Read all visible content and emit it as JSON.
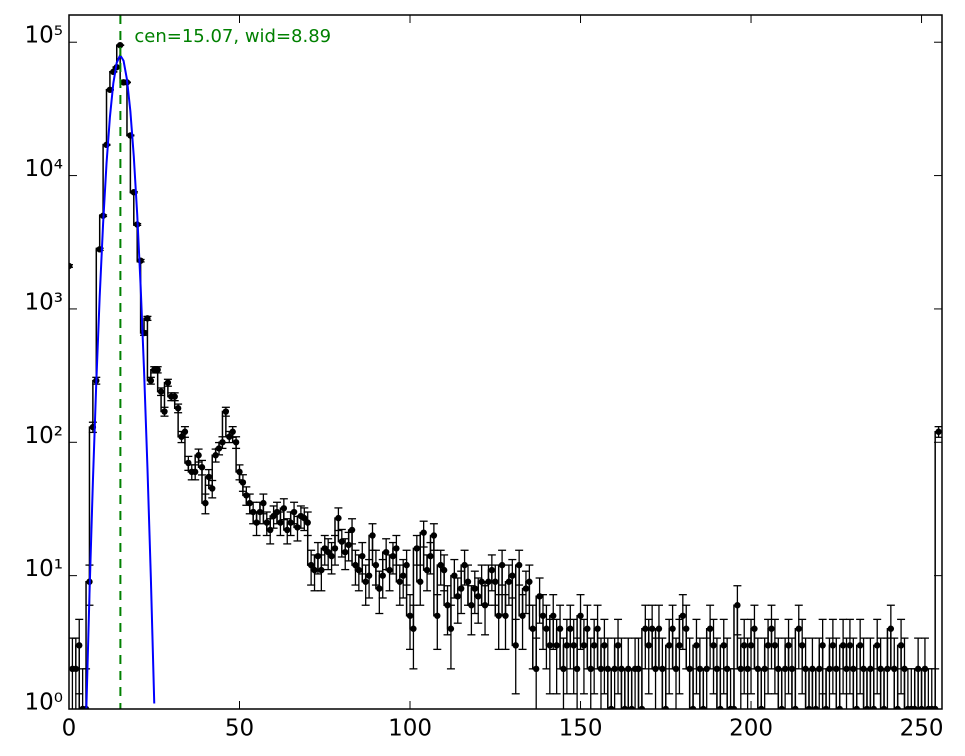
{
  "chart_data": {
    "type": "errorbar",
    "annotation": "cen=15.07, wid=8.89",
    "annotation_color": "#008000",
    "vline": 15.07,
    "log_y": true,
    "xlim": [
      0,
      256
    ],
    "ylim": [
      1,
      160000
    ],
    "xticks": [
      0,
      50,
      100,
      150,
      200,
      250
    ],
    "yticks": [
      {
        "value": 1,
        "label": "10⁰"
      },
      {
        "value": 10,
        "label": "10¹"
      },
      {
        "value": 100,
        "label": "10²"
      },
      {
        "value": 1000,
        "label": "10³"
      },
      {
        "value": 10000,
        "label": "10⁴"
      },
      {
        "value": 100000,
        "label": "10⁵"
      }
    ],
    "series": [
      {
        "color": "#000000",
        "x": [
          0,
          1,
          2,
          3,
          4,
          5,
          6,
          7,
          8,
          9,
          10,
          11,
          12,
          13,
          14,
          15,
          16,
          17,
          18,
          19,
          20,
          21,
          22,
          23,
          24,
          25,
          26,
          27,
          28,
          29,
          30,
          31,
          32,
          33,
          34,
          35,
          36,
          37,
          38,
          39,
          40,
          41,
          42,
          43,
          44,
          45,
          46,
          47,
          48,
          49,
          50,
          51,
          52,
          53,
          54,
          55,
          56,
          57,
          58,
          59,
          60,
          61,
          62,
          63,
          64,
          65,
          66,
          67,
          68,
          69,
          70,
          71,
          72,
          73,
          74,
          75,
          76,
          77,
          78,
          79,
          80,
          81,
          82,
          83,
          84,
          85,
          86,
          87,
          88,
          89,
          90,
          91,
          92,
          93,
          94,
          95,
          96,
          97,
          98,
          99,
          100,
          101,
          102,
          103,
          104,
          105,
          106,
          107,
          108,
          109,
          110,
          111,
          112,
          113,
          114,
          115,
          116,
          117,
          118,
          119,
          120,
          121,
          122,
          123,
          124,
          125,
          126,
          127,
          128,
          129,
          130,
          131,
          132,
          133,
          134,
          135,
          136,
          137,
          138,
          139,
          140,
          141,
          142,
          143,
          144,
          145,
          146,
          147,
          148,
          149,
          150,
          151,
          152,
          153,
          154,
          155,
          156,
          157,
          158,
          159,
          160,
          161,
          162,
          163,
          164,
          165,
          166,
          167,
          168,
          169,
          170,
          171,
          172,
          173,
          174,
          175,
          176,
          177,
          178,
          179,
          180,
          181,
          182,
          183,
          184,
          185,
          186,
          187,
          188,
          189,
          190,
          191,
          192,
          193,
          194,
          195,
          196,
          197,
          198,
          199,
          200,
          201,
          202,
          203,
          204,
          205,
          206,
          207,
          208,
          209,
          210,
          211,
          212,
          213,
          214,
          215,
          216,
          217,
          218,
          219,
          220,
          221,
          222,
          223,
          224,
          225,
          226,
          227,
          228,
          229,
          230,
          231,
          232,
          233,
          234,
          235,
          236,
          237,
          238,
          239,
          240,
          241,
          242,
          243,
          244,
          245,
          246,
          247,
          248,
          249,
          250,
          251,
          252,
          253,
          254,
          255
        ],
        "values": [
          2100,
          2,
          2,
          3,
          1,
          1,
          9,
          130,
          290,
          2800,
          5000,
          17000,
          44000,
          60000,
          65000,
          95000,
          50000,
          50000,
          20000,
          7500,
          4300,
          2300,
          660,
          850,
          290,
          350,
          350,
          240,
          170,
          280,
          220,
          220,
          180,
          110,
          120,
          70,
          60,
          60,
          80,
          65,
          35,
          55,
          45,
          80,
          90,
          100,
          170,
          110,
          120,
          100,
          60,
          50,
          40,
          35,
          30,
          25,
          30,
          35,
          25,
          22,
          28,
          30,
          25,
          32,
          22,
          25,
          30,
          23,
          28,
          27,
          25,
          12,
          11,
          14,
          11,
          16,
          15,
          14,
          16,
          27,
          18,
          15,
          17,
          22,
          12,
          11,
          14,
          9,
          10,
          20,
          12,
          8,
          10,
          15,
          11,
          14,
          16,
          9,
          10,
          12,
          5,
          4,
          16,
          9,
          21,
          11,
          14,
          20,
          5,
          12,
          11,
          6,
          4,
          10,
          7,
          8,
          12,
          9,
          6,
          8,
          7,
          9,
          6,
          9,
          11,
          9,
          5,
          12,
          5,
          9,
          10,
          3,
          12,
          5,
          8,
          9,
          4,
          2,
          7,
          5,
          4,
          3,
          5,
          3,
          4,
          2,
          3,
          4,
          3,
          2,
          5,
          3,
          4,
          2,
          3,
          4,
          2,
          3,
          2,
          1,
          2,
          3,
          2,
          1,
          2,
          1,
          2,
          2,
          1,
          4,
          3,
          4,
          2,
          4,
          2,
          1,
          3,
          4,
          2,
          3,
          5,
          4,
          2,
          1,
          3,
          2,
          1,
          2,
          4,
          3,
          2,
          1,
          3,
          2,
          1,
          1,
          6,
          2,
          3,
          2,
          3,
          4,
          2,
          1,
          2,
          3,
          4,
          3,
          2,
          1,
          2,
          3,
          2,
          1,
          4,
          3,
          2,
          1,
          2,
          1,
          2,
          3,
          1,
          2,
          3,
          2,
          1,
          3,
          2,
          3,
          2,
          1,
          3,
          2,
          1,
          2,
          1,
          3,
          2,
          1,
          2,
          4,
          2,
          1,
          3,
          2,
          1,
          1,
          1,
          2,
          1,
          2,
          1,
          1,
          1,
          120
        ],
        "errors": [
          45.8,
          1.4,
          1.4,
          1.7,
          1,
          1,
          3,
          11.4,
          17,
          52.9,
          70.7,
          130.4,
          209.8,
          244.9,
          255,
          308.2,
          223.6,
          223.6,
          141.4,
          86.6,
          65.6,
          48,
          25.7,
          29.2,
          17,
          18.7,
          18.7,
          15.5,
          13,
          16.7,
          14.8,
          14.8,
          13.4,
          10.5,
          11,
          8.4,
          7.7,
          7.7,
          8.9,
          8.1,
          5.9,
          7.4,
          6.7,
          8.9,
          9.5,
          10,
          13,
          10.5,
          11,
          10,
          7.7,
          7.1,
          6.3,
          5.9,
          5.5,
          5,
          5.5,
          5.9,
          5,
          4.7,
          5.3,
          5.5,
          5,
          5.7,
          4.7,
          5,
          5.5,
          4.8,
          5.3,
          5.2,
          5,
          3.5,
          3.3,
          3.7,
          3.3,
          4,
          3.9,
          3.7,
          4,
          5.2,
          4.2,
          3.9,
          4.1,
          4.7,
          3.5,
          3.3,
          3.7,
          3,
          3.2,
          4.5,
          3.5,
          2.8,
          3.2,
          3.9,
          3.3,
          3.7,
          4,
          3,
          3.2,
          3.5,
          2.2,
          2,
          4,
          3,
          4.6,
          3.3,
          3.7,
          4.5,
          2.2,
          3.5,
          3.3,
          2.4,
          2,
          3.2,
          2.6,
          2.8,
          3.5,
          3,
          2.4,
          2.8,
          2.6,
          3,
          2.4,
          3,
          3.3,
          3,
          2.2,
          3.5,
          2.2,
          3,
          3.2,
          1.7,
          3.5,
          2.2,
          2.8,
          3,
          2,
          1.4,
          2.6,
          2.2,
          2,
          1.7,
          2.2,
          1.7,
          2,
          1.4,
          1.7,
          2,
          1.7,
          1.4,
          2.2,
          1.7,
          2,
          1.4,
          1.7,
          2,
          1.4,
          1.7,
          1.4,
          1,
          1.4,
          1.7,
          1.4,
          1,
          1.4,
          1,
          1.4,
          1.4,
          1,
          2,
          1.7,
          2,
          1.4,
          2,
          1.4,
          1,
          1.7,
          2,
          1.4,
          1.7,
          2.2,
          2,
          1.4,
          1,
          1.7,
          1.4,
          1,
          1.4,
          2,
          1.7,
          1.4,
          1,
          1.7,
          1.4,
          1,
          1,
          2.4,
          1.4,
          1.7,
          1.4,
          1.7,
          2,
          1.4,
          1,
          1.4,
          1.7,
          2,
          1.7,
          1.4,
          1,
          1.4,
          1.7,
          1.4,
          1,
          2,
          1.7,
          1.4,
          1,
          1.4,
          1,
          1.4,
          1.7,
          1,
          1.4,
          1.7,
          1.4,
          1,
          1.7,
          1.4,
          1.7,
          1.4,
          1,
          1.7,
          1.4,
          1,
          1.4,
          1,
          1.7,
          1.4,
          1,
          1.4,
          2,
          1.4,
          1,
          1.7,
          1.4,
          1,
          1,
          1,
          1.4,
          1,
          1.4,
          1,
          1,
          1,
          11
        ]
      },
      {
        "type": "line",
        "color": "#0000ff",
        "x": [
          5,
          6,
          7,
          8,
          9,
          10,
          11,
          12,
          13,
          14,
          15,
          16,
          17,
          18,
          19,
          20,
          21,
          22,
          23,
          24,
          25
        ],
        "values": [
          0.83,
          7.2,
          50,
          280,
          1240,
          4360,
          12300,
          27500,
          49300,
          70200,
          80000,
          72600,
          52500,
          30300,
          13900,
          5120,
          1490,
          350,
          65,
          9.7,
          1.1
        ]
      }
    ]
  }
}
